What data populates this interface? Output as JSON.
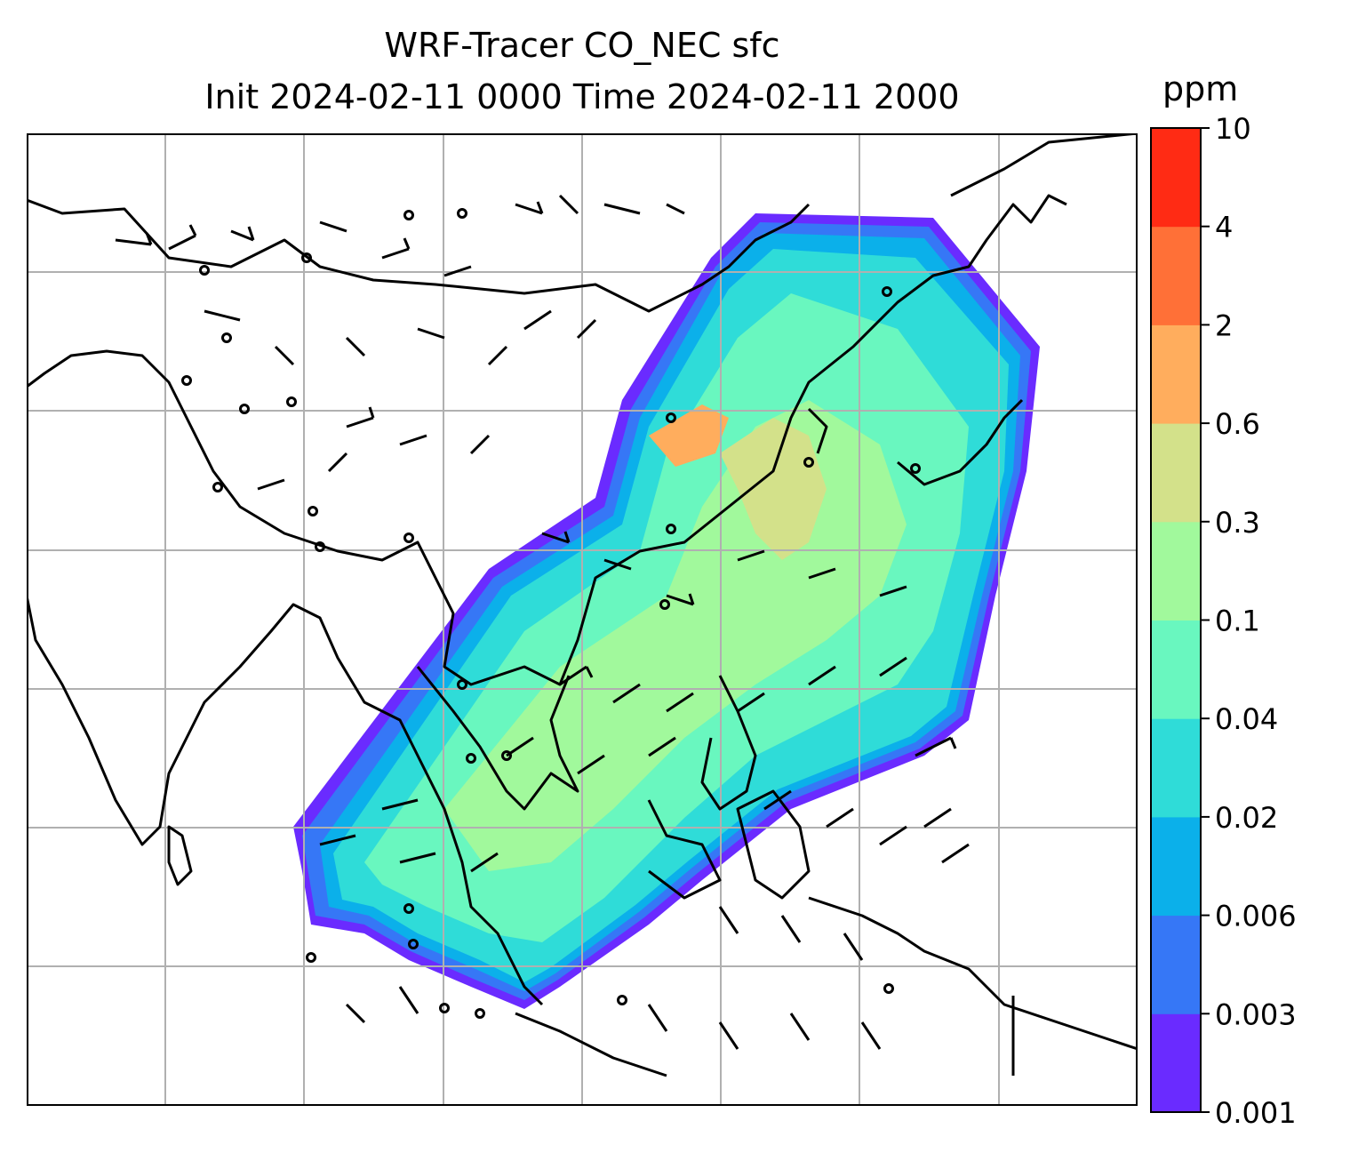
{
  "title": {
    "line1": "WRF-Tracer CO_NEC sfc",
    "line2": "Init 2024-02-11 0000 Time 2024-02-11 2000"
  },
  "colorbar": {
    "unit": "ppm",
    "levels": [
      "0.001",
      "0.003",
      "0.006",
      "0.02",
      "0.04",
      "0.1",
      "0.3",
      "0.6",
      "2",
      "4",
      "10"
    ],
    "colors": [
      "#6a2bff",
      "#3677f6",
      "#0bb0ea",
      "#2fdcd8",
      "#69f7bf",
      "#a1f99c",
      "#d3e18a",
      "#ffad5d",
      "#ff7037",
      "#ff2b14"
    ]
  },
  "map": {
    "background": "#ffffff",
    "gridlines": true,
    "grid_color": "#b0b0b0",
    "coastline_color": "#000000",
    "barb_color": "#000000"
  }
}
